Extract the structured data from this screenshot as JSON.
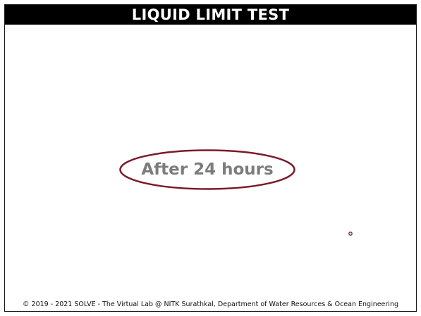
{
  "header": {
    "title": "LIQUID LIMIT TEST"
  },
  "main": {
    "message": "After 24 hours"
  },
  "footer": {
    "copyright": "© 2019 - 2021 SOLVE - The Virtual Lab @ NITK Surathkal, Department of Water Resources & Ocean Engineering"
  },
  "colors": {
    "title_bar_bg": "#000000",
    "title_text": "#ffffff",
    "ellipse_stroke": "#7a1a2a",
    "message_text": "#7c7c7c"
  }
}
